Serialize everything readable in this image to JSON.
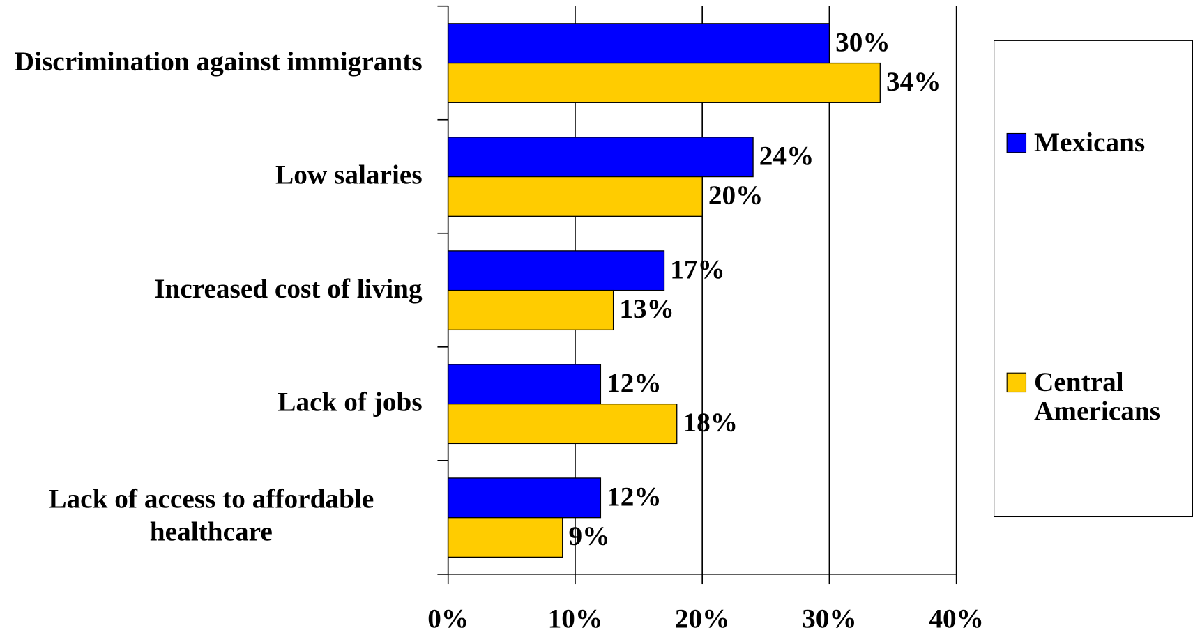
{
  "chart_data": {
    "type": "hbar",
    "categories": [
      "Discrimination against immigrants",
      "Low salaries",
      "Increased cost of living",
      "Lack of jobs",
      "Lack of access to affordable healthcare"
    ],
    "series": [
      {
        "name": "Mexicans",
        "color": "#0000ff",
        "values": [
          30,
          24,
          17,
          12,
          12
        ],
        "value_labels": [
          "30%",
          "24%",
          "17%",
          "12%",
          "12%"
        ]
      },
      {
        "name": "Central Americans",
        "color": "#ffcc00",
        "values": [
          34,
          20,
          13,
          18,
          9
        ],
        "value_labels": [
          "34%",
          "20%",
          "13%",
          "18%",
          "9%"
        ]
      }
    ],
    "xlim": [
      0,
      40
    ],
    "xticks": [
      {
        "value": 0,
        "label": "0%"
      },
      {
        "value": 10,
        "label": "10%"
      },
      {
        "value": 20,
        "label": "20%"
      },
      {
        "value": 30,
        "label": "30%"
      },
      {
        "value": 40,
        "label": "40%"
      }
    ],
    "grid": true,
    "legend": "right"
  }
}
